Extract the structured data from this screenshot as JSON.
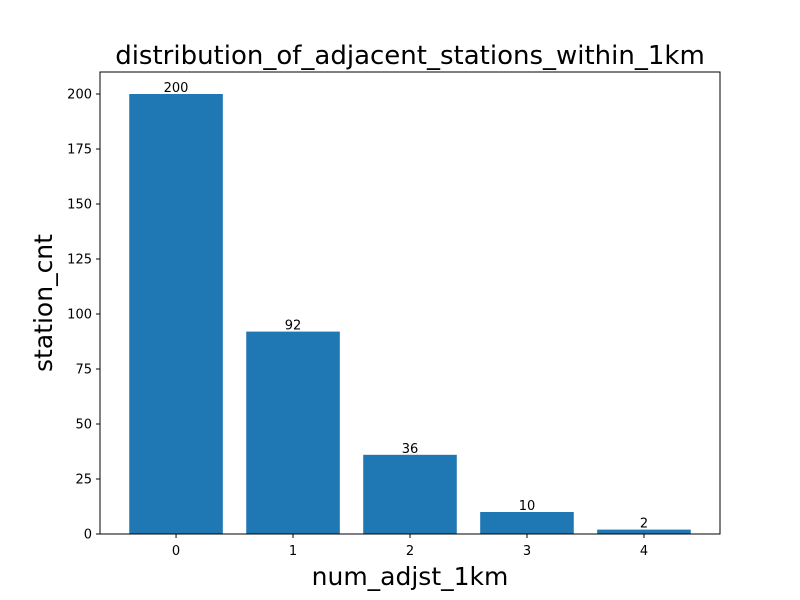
{
  "chart_data": {
    "type": "bar",
    "title": "distribution_of_adjacent_stations_within_1km",
    "xlabel": "num_adjst_1km",
    "ylabel": "station_cnt",
    "categories": [
      "0",
      "1",
      "2",
      "3",
      "4"
    ],
    "values": [
      200,
      92,
      36,
      10,
      2
    ],
    "data_labels": [
      "200",
      "92",
      "36",
      "10",
      "2"
    ],
    "ylim": [
      0,
      210
    ],
    "yticks": [
      0,
      25,
      50,
      75,
      100,
      125,
      150,
      175,
      200
    ],
    "xlim": [
      -0.65,
      4.65
    ],
    "grid": false,
    "legend": "none",
    "bar_color": "#1f77b4"
  }
}
